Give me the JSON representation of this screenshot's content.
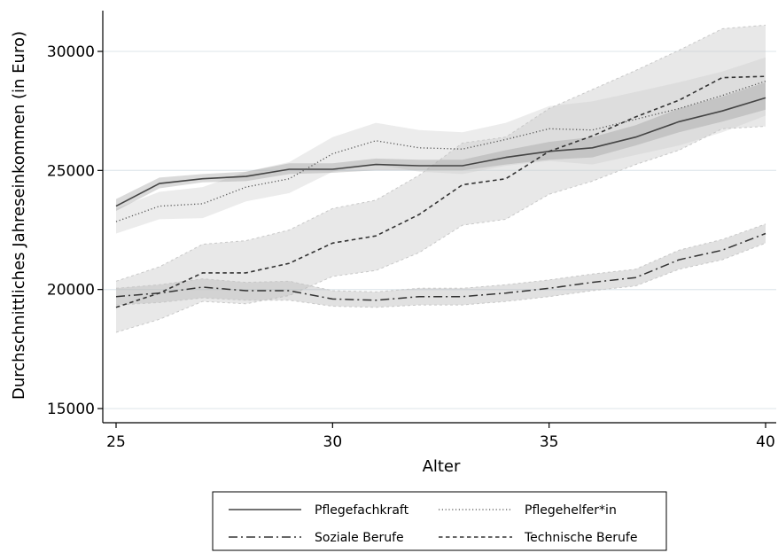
{
  "chart_data": {
    "type": "line",
    "xlabel": "Alter",
    "ylabel": "Durchschnittliches Jahreseinkommen (in Euro)",
    "xlim": [
      25,
      40
    ],
    "ylim": [
      15000,
      30000
    ],
    "xticks": [
      25,
      30,
      35,
      40
    ],
    "yticks": [
      15000,
      20000,
      25000,
      30000
    ],
    "grid": "horizontal",
    "legend_position": "bottom",
    "x": [
      25,
      26,
      27,
      28,
      29,
      30,
      31,
      32,
      33,
      34,
      35,
      36,
      37,
      38,
      39,
      40
    ],
    "series": [
      {
        "name": "Pflegefachkraft",
        "style": "solid",
        "values": [
          23500,
          24450,
          24650,
          24750,
          25050,
          25050,
          25250,
          25200,
          25200,
          25550,
          25800,
          25950,
          26400,
          27050,
          27500,
          28050
        ],
        "lower": [
          23300,
          24250,
          24500,
          24550,
          24850,
          24900,
          25000,
          25000,
          25000,
          25250,
          25450,
          25550,
          26050,
          26600,
          27050,
          27550
        ],
        "upper": [
          23800,
          24700,
          24850,
          24950,
          25300,
          25300,
          25500,
          25450,
          25450,
          25850,
          26200,
          26400,
          26900,
          27600,
          28100,
          28700
        ]
      },
      {
        "name": "Pflegehelfer*in",
        "style": "dotted",
        "values": [
          22850,
          23500,
          23600,
          24300,
          24650,
          25700,
          26250,
          25950,
          25900,
          26300,
          26750,
          26700,
          27150,
          27600,
          28150,
          28750
        ],
        "lower": [
          22350,
          22950,
          23000,
          23700,
          24050,
          24950,
          25250,
          24950,
          24850,
          25200,
          25400,
          25250,
          25650,
          26050,
          26600,
          27300
        ],
        "upper": [
          23400,
          24100,
          24300,
          24950,
          25350,
          26400,
          27000,
          26700,
          26600,
          27000,
          27700,
          27900,
          28300,
          28700,
          29150,
          29750
        ]
      },
      {
        "name": "Soziale Berufe",
        "style": "dashdot",
        "values": [
          19700,
          19850,
          20100,
          19950,
          19950,
          19600,
          19550,
          19700,
          19700,
          19850,
          20050,
          20300,
          20500,
          21250,
          21650,
          22350
        ],
        "lower": [
          19350,
          19450,
          19650,
          19550,
          19550,
          19300,
          19250,
          19350,
          19350,
          19500,
          19700,
          19950,
          20150,
          20850,
          21250,
          21950
        ],
        "upper": [
          20050,
          20200,
          20450,
          20300,
          20350,
          19950,
          19900,
          20050,
          20050,
          20200,
          20400,
          20650,
          20850,
          21650,
          22100,
          22750
        ]
      },
      {
        "name": "Technische Berufe",
        "style": "dashed",
        "values": [
          19250,
          19850,
          20700,
          20700,
          21100,
          21950,
          22250,
          23150,
          24400,
          24650,
          25800,
          26450,
          27250,
          27950,
          28900,
          28950
        ],
        "lower": [
          18200,
          18750,
          19500,
          19400,
          19750,
          20550,
          20800,
          21550,
          22700,
          22950,
          24000,
          24550,
          25250,
          25850,
          26750,
          26850
        ],
        "upper": [
          20350,
          20950,
          21900,
          22050,
          22500,
          23400,
          23750,
          24800,
          26150,
          26400,
          27600,
          28400,
          29200,
          30050,
          30950,
          31100
        ]
      }
    ]
  },
  "legend": {
    "items": [
      {
        "label": "Pflegefachkraft",
        "style": "solid"
      },
      {
        "label": "Pflegehelfer*in",
        "style": "dotted"
      },
      {
        "label": "Soziale Berufe",
        "style": "dashdot"
      },
      {
        "label": "Technische Berufe",
        "style": "dashed"
      }
    ]
  }
}
